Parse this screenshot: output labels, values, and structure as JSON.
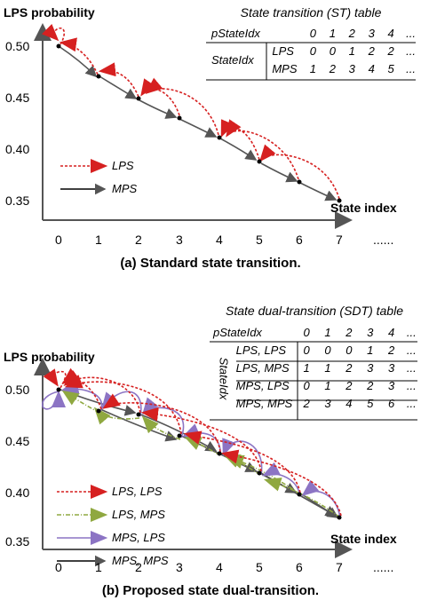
{
  "panel_a": {
    "y_axis_label": "LPS probability",
    "y_ticks": [
      "0.50",
      "0.45",
      "0.40",
      "0.35"
    ],
    "x_ticks": [
      "0",
      "1",
      "2",
      "3",
      "4",
      "5",
      "6",
      "7",
      "......"
    ],
    "x_axis_label": "State index",
    "caption": "(a) Standard state transition.",
    "table_title": "State transition (ST) table",
    "table": {
      "header": "pStateIdx",
      "header_values": [
        "0",
        "1",
        "2",
        "3",
        "4",
        "..."
      ],
      "group_label": "StateIdx",
      "rows": [
        {
          "label": "LPS",
          "values": [
            "0",
            "0",
            "1",
            "2",
            "2",
            "..."
          ]
        },
        {
          "label": "MPS",
          "values": [
            "1",
            "2",
            "3",
            "4",
            "5",
            "..."
          ]
        }
      ]
    },
    "legend": [
      {
        "label": "LPS",
        "color": "#d62020",
        "style": "dashed"
      },
      {
        "label": "MPS",
        "color": "#000000",
        "style": "solid"
      }
    ]
  },
  "panel_b": {
    "y_axis_label": "LPS probability",
    "y_ticks": [
      "0.50",
      "0.45",
      "0.40",
      "0.35"
    ],
    "x_ticks": [
      "0",
      "1",
      "2",
      "3",
      "4",
      "5",
      "6",
      "7",
      "......"
    ],
    "x_axis_label": "State index",
    "caption": "(b) Proposed state dual-transition.",
    "table_title": "State dual-transition (SDT) table",
    "table": {
      "header": "pStateIdx",
      "header_values": [
        "0",
        "1",
        "2",
        "3",
        "4",
        "..."
      ],
      "group_label": "StateIdx",
      "rows": [
        {
          "label": "LPS, LPS",
          "values": [
            "0",
            "0",
            "0",
            "1",
            "2",
            "..."
          ]
        },
        {
          "label": "LPS, MPS",
          "values": [
            "1",
            "1",
            "2",
            "3",
            "3",
            "..."
          ]
        },
        {
          "label": "MPS, LPS",
          "values": [
            "0",
            "1",
            "2",
            "2",
            "3",
            "..."
          ]
        },
        {
          "label": "MPS, MPS",
          "values": [
            "2",
            "3",
            "4",
            "5",
            "6",
            "..."
          ]
        }
      ]
    },
    "legend": [
      {
        "label": "LPS, LPS",
        "color": "#d62020",
        "style": "dashed"
      },
      {
        "label": "LPS, MPS",
        "color": "#8fa840",
        "style": "dashdot"
      },
      {
        "label": "MPS, LPS",
        "color": "#8c74c4",
        "style": "solid"
      },
      {
        "label": "MPS, MPS",
        "color": "#000000",
        "style": "solid"
      }
    ]
  }
}
